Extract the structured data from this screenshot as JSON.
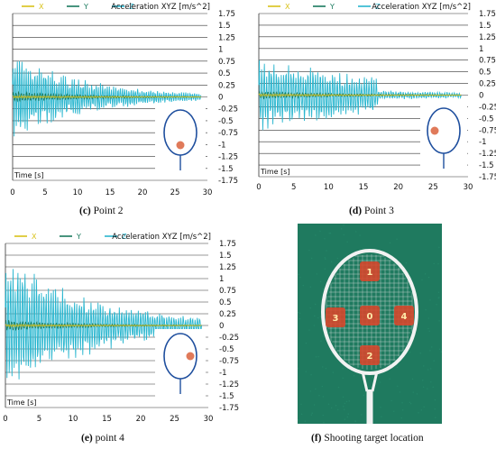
{
  "chart_data": [
    {
      "type": "line",
      "panel_caption_prefix": "(c)",
      "panel_caption_label": "Point 2",
      "title": "Acceleration XYZ [m/s^2]",
      "xlabel": "Time [s]",
      "xlim": [
        0,
        30
      ],
      "ylim": [
        -1.75,
        1.75
      ],
      "xticks": [
        "0",
        "5",
        "10",
        "15",
        "20",
        "25",
        "30"
      ],
      "yticks": [
        "1.75",
        "1.5",
        "1.25",
        "1",
        "0.75",
        "0.5",
        "0.25",
        "0",
        "-0.25",
        "-0.5",
        "-0.75",
        "-1",
        "-1.25",
        "-1.5",
        "-1.75"
      ],
      "series": [
        {
          "name": "X",
          "color": "#d9c21a",
          "amp": 0.03,
          "decay": 0.05,
          "freq": 1.4
        },
        {
          "name": "Y",
          "color": "#1a7a5e",
          "amp": 0.12,
          "decay": 0.08,
          "freq": 1.1
        },
        {
          "name": "Z",
          "color": "#29b6cf",
          "amp": 0.95,
          "decay": 0.085,
          "freq": 1.35
        }
      ],
      "signal_end": 29,
      "target_point": "bottom",
      "grid": true,
      "legend": "top"
    },
    {
      "type": "line",
      "panel_caption_prefix": "(d)",
      "panel_caption_label": "Point 3",
      "title": "Acceleration XYZ [m/s^2]",
      "xlabel": "Time [s]",
      "xlim": [
        0,
        30
      ],
      "ylim": [
        -1.75,
        1.75
      ],
      "xticks": [
        "0",
        "5",
        "10",
        "15",
        "20",
        "25",
        "30"
      ],
      "yticks": [
        "1.75",
        "1.5",
        "1.25",
        "1",
        "0.75",
        "0.5",
        "0.25",
        "0",
        "-0.25",
        "-0.5",
        "-0.75",
        "-1",
        "-1.25",
        "-1.5",
        "-1.75"
      ],
      "series": [
        {
          "name": "X",
          "color": "#d9c21a",
          "amp": 0.03,
          "decay": 0.05,
          "freq": 1.4
        },
        {
          "name": "Y",
          "color": "#1a7a5e",
          "amp": 0.1,
          "decay": 0.08,
          "freq": 1.1
        },
        {
          "name": "Z",
          "color": "#29b6cf",
          "amp": 0.8,
          "decay": 0.04,
          "freq": 1.3
        }
      ],
      "signal_end": 29,
      "target_point": "left",
      "grid": true,
      "legend": "top"
    },
    {
      "type": "line",
      "panel_caption_prefix": "(e)",
      "panel_caption_label": "point 4",
      "title": "Acceleration XYZ [m/s^2]",
      "xlabel": "Time [s]",
      "xlim": [
        0,
        30
      ],
      "ylim": [
        -1.75,
        1.75
      ],
      "xticks": [
        "0",
        "5",
        "10",
        "15",
        "20",
        "25",
        "30"
      ],
      "yticks": [
        "1.75",
        "1.5",
        "1.25",
        "1",
        "0.75",
        "0.5",
        "0.25",
        "0",
        "-0.25",
        "-0.5",
        "-0.75",
        "-1",
        "-1.25",
        "-1.5",
        "-1.75"
      ],
      "series": [
        {
          "name": "X",
          "color": "#d9c21a",
          "amp": 0.03,
          "decay": 0.05,
          "freq": 1.4
        },
        {
          "name": "Y",
          "color": "#1a7a5e",
          "amp": 0.12,
          "decay": 0.08,
          "freq": 1.1
        },
        {
          "name": "Z",
          "color": "#29b6cf",
          "amp": 1.5,
          "decay": 0.07,
          "freq": 1.3
        }
      ],
      "signal_end": 29,
      "target_point": "right",
      "grid": true,
      "legend": "top"
    }
  ],
  "photo": {
    "caption_prefix": "(f)",
    "caption_label": "Shooting target location",
    "targets": [
      "1",
      "3",
      "0",
      "4",
      "2"
    ],
    "background_color": "#1f7a5f",
    "target_color": "#d9452a"
  }
}
